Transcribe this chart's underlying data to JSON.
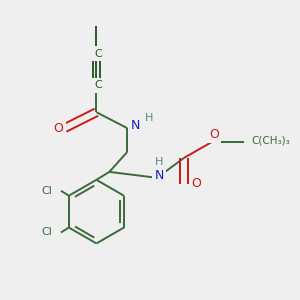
{
  "background_color": "#efefef",
  "bond_color": "#3a6b3a",
  "atom_colors": {
    "N": "#1a1acc",
    "O": "#cc1a1a",
    "Cl": "#3a6b3a",
    "C": "#2a5a2a",
    "H": "#5a8888"
  },
  "figsize": [
    3.0,
    3.0
  ],
  "dpi": 100
}
